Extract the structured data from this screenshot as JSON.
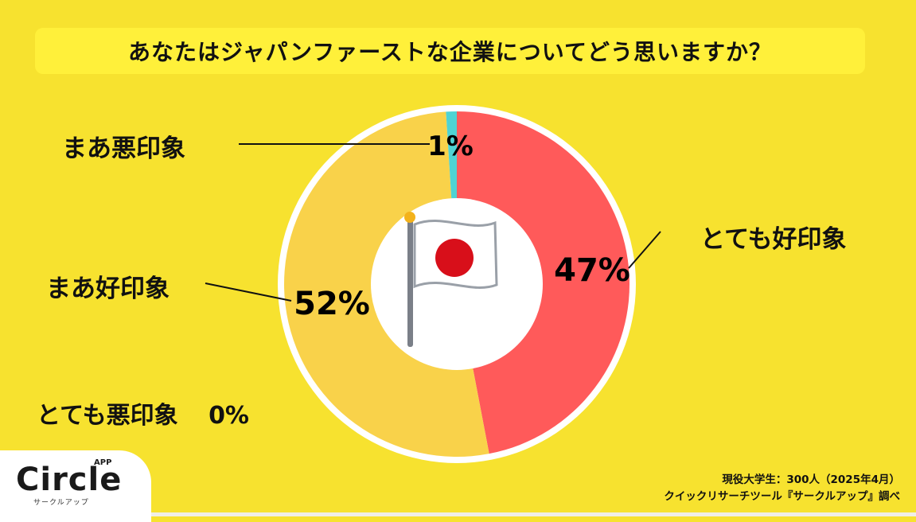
{
  "title": "あなたはジャパンファーストな企業についてどう思いますか？",
  "chart_data": {
    "type": "pie",
    "title": "あなたはジャパンファーストな企業についてどう思いますか？",
    "slices": [
      {
        "label": "とても好印象",
        "value": 47,
        "display": "47%",
        "color": "#ff5a5a"
      },
      {
        "label": "まあ好印象",
        "value": 52,
        "display": "52%",
        "color": "#f9d24a"
      },
      {
        "label": "まあ悪印象",
        "value": 1,
        "display": "1%",
        "color": "#4fd3d3"
      },
      {
        "label": "とても悪印象",
        "value": 0,
        "display": "0%",
        "color": "#cccccc"
      }
    ]
  },
  "labels": {
    "very_good": "とても好印象",
    "somewhat_good": "まあ好印象",
    "somewhat_bad": "まあ悪印象",
    "very_bad": "とても悪印象",
    "very_bad_pct": "0%"
  },
  "source": {
    "line1": "現役大学生：300人（2025年4月）",
    "line2": "クイックリサーチツール『サークルアップ』調べ"
  },
  "logo": {
    "name": "Circle",
    "superscript": "APP",
    "sub": "サークルアップ"
  },
  "colors": {
    "background": "#f7e22f",
    "title_box": "#fff03a",
    "very_good": "#ff5a5a",
    "somewhat_good": "#f9d24a",
    "somewhat_bad": "#4fd3d3"
  }
}
